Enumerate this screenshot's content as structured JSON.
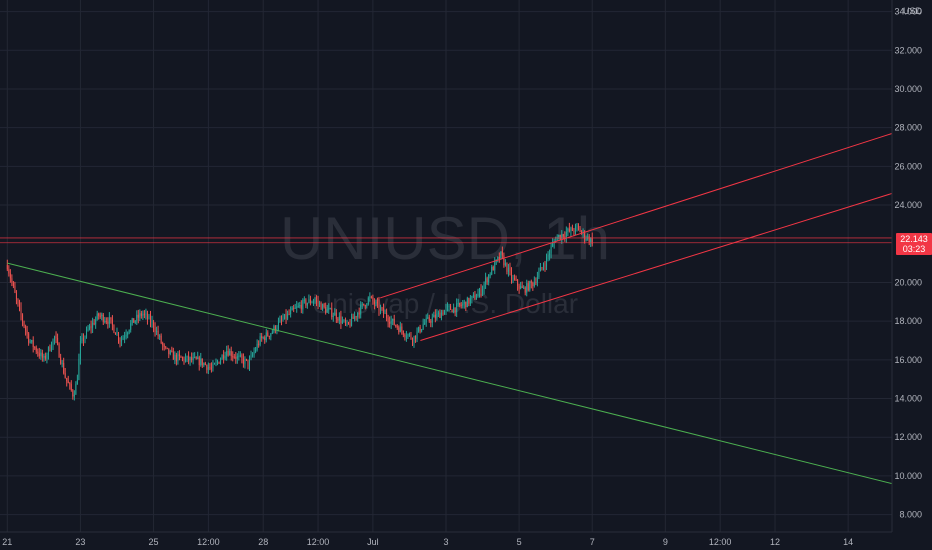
{
  "chart_data": {
    "type": "candlestick",
    "symbol": "UNIUSD",
    "interval": "1h",
    "watermark_title": "UNIUSD, 1h",
    "watermark_subtitle": "Uniswap / U.S. Dollar",
    "currency": "USD",
    "y_ticks": [
      "34.000",
      "32.000",
      "30.000",
      "28.000",
      "26.000",
      "24.000",
      "20.000",
      "18.000",
      "16.000",
      "14.000",
      "12.000",
      "10.000",
      "8.000"
    ],
    "y_tick_values": [
      34,
      32,
      30,
      28,
      26,
      24,
      20,
      18,
      16,
      14,
      12,
      10,
      8
    ],
    "ylim": [
      7.1,
      34.6
    ],
    "x_ticks": [
      "21",
      "23",
      "25",
      "12:00",
      "28",
      "12:00",
      "Jul",
      "3",
      "5",
      "7",
      "9",
      "12:00",
      "12",
      "14"
    ],
    "x_tick_days": [
      0,
      2,
      4,
      5.5,
      7,
      8.5,
      10,
      12,
      14,
      16,
      18,
      19.5,
      21,
      23
    ],
    "xlim": [
      -0.2,
      24.2
    ],
    "last_price": "22.143",
    "countdown": "03:23",
    "colors": {
      "up": "#26a69a",
      "down": "#ef5350",
      "trend": "#4caf50",
      "channel": "#f23645",
      "price_tag": "#f23645"
    },
    "path_day": [
      0,
      0.3,
      0.6,
      1.0,
      1.3,
      1.6,
      1.8,
      1.9,
      2.0,
      2.2,
      2.5,
      2.8,
      3.1,
      3.4,
      3.7,
      4.0,
      4.3,
      4.6,
      5.0,
      5.3,
      5.6,
      6.0,
      6.3,
      6.6,
      6.9,
      7.2,
      7.5,
      7.8,
      8.1,
      8.4,
      8.7,
      9.0,
      9.3,
      9.6,
      9.9,
      10.2,
      10.5,
      10.8,
      11.1,
      11.4,
      11.7,
      12.0,
      12.3,
      12.6,
      12.9,
      13.2,
      13.5,
      13.8,
      14.1,
      14.4,
      14.7,
      15.0,
      15.3,
      15.6,
      15.8,
      16.0
    ],
    "path_price": [
      20.9,
      18.7,
      17.0,
      16.0,
      17.2,
      15.0,
      14.2,
      14.8,
      16.8,
      17.5,
      18.3,
      18.0,
      17.0,
      17.9,
      18.4,
      17.8,
      16.5,
      16.1,
      16.0,
      15.9,
      15.5,
      16.5,
      16.1,
      15.8,
      17.0,
      17.4,
      18.0,
      18.5,
      18.9,
      19.1,
      18.6,
      18.3,
      17.7,
      18.5,
      19.2,
      18.6,
      18.0,
      17.5,
      17.1,
      17.9,
      18.2,
      18.6,
      18.7,
      19.0,
      19.4,
      20.5,
      21.4,
      20.2,
      19.6,
      20.0,
      21.0,
      22.3,
      22.6,
      22.8,
      22.4,
      22.14
    ],
    "trendline": {
      "from": [
        0,
        21.0
      ],
      "to": [
        24.2,
        9.6
      ]
    },
    "channel_upper": {
      "from": [
        10.2,
        19.2
      ],
      "to": [
        24.2,
        27.7
      ]
    },
    "channel_lower": {
      "from": [
        11.3,
        17.0
      ],
      "to": [
        24.2,
        24.6
      ]
    },
    "h_lines": [
      22.3,
      22.05
    ]
  }
}
